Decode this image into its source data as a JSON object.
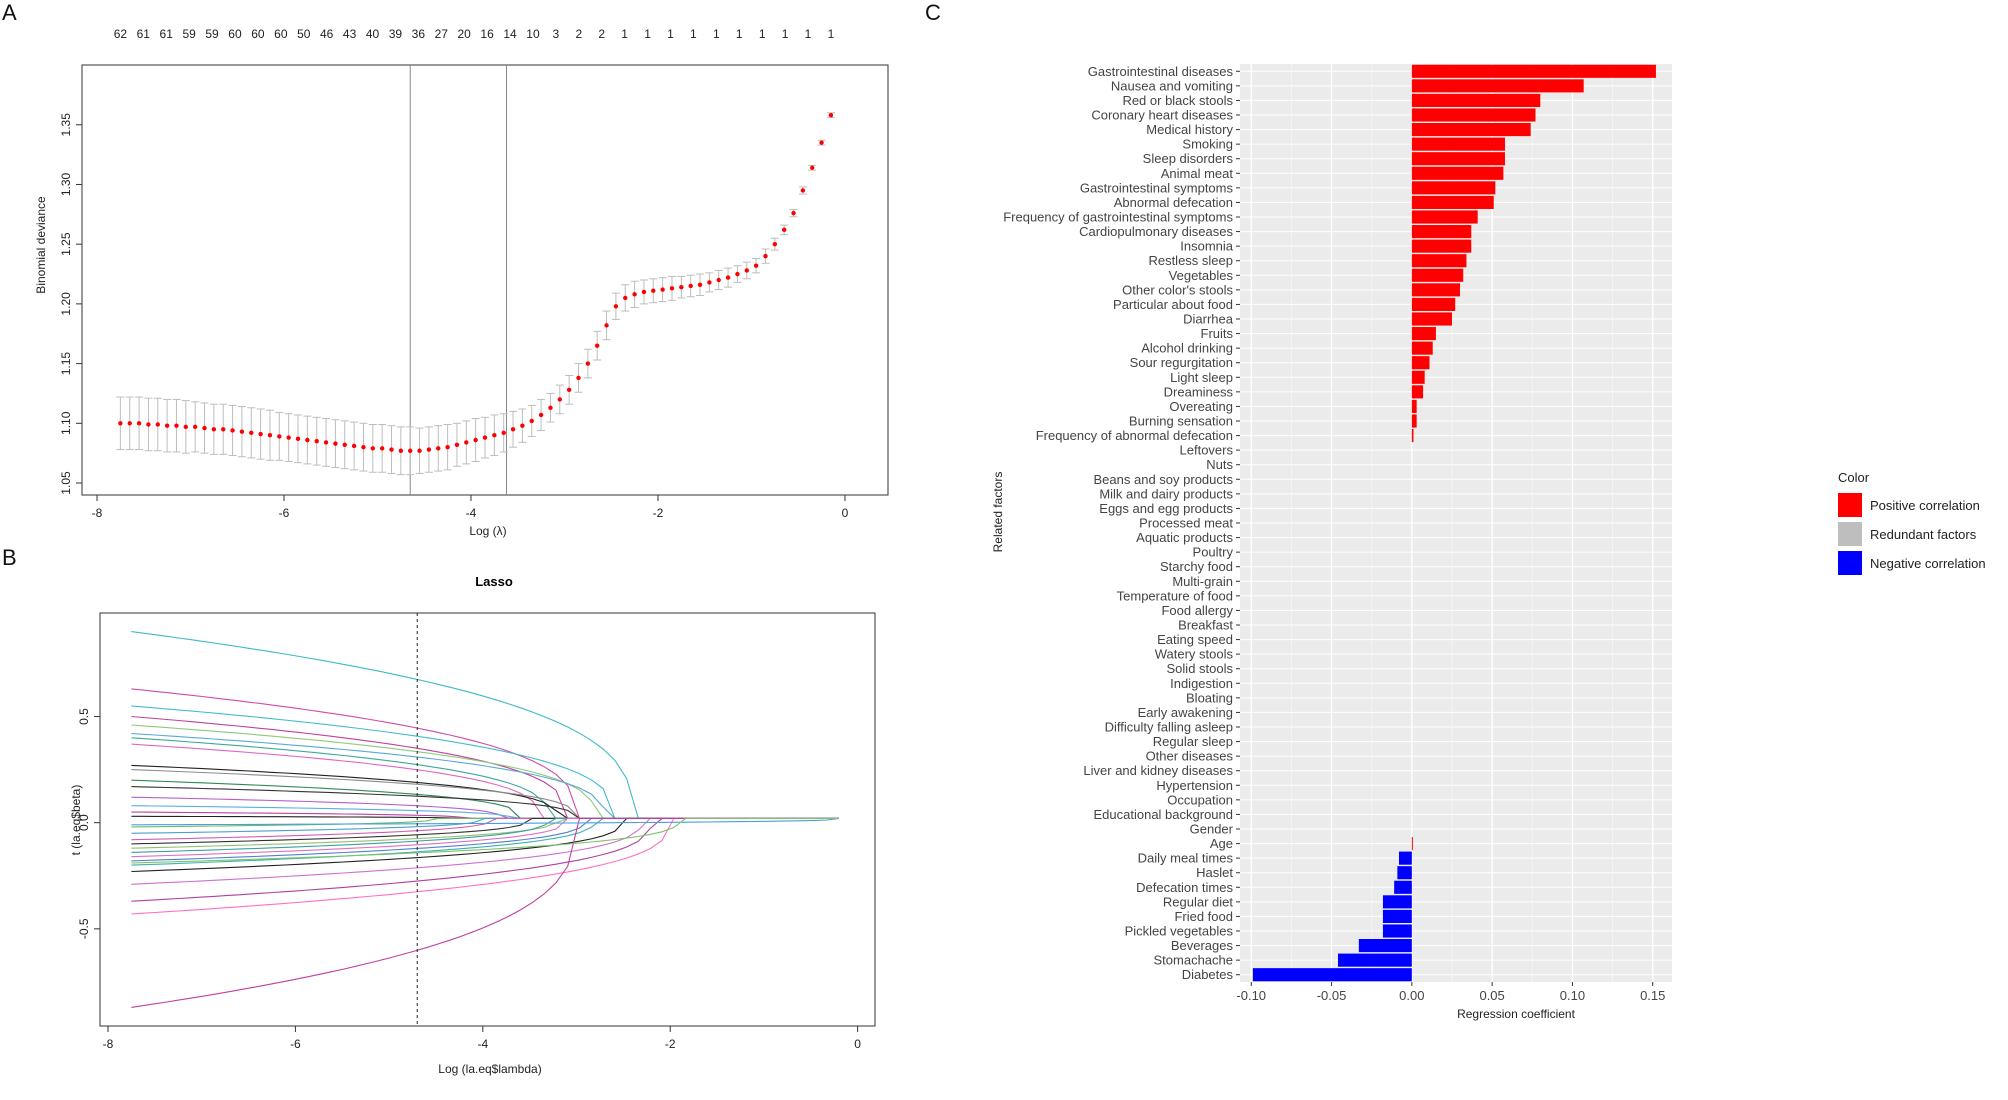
{
  "panels": {
    "a_letter": "A",
    "b_letter": "B",
    "c_letter": "C"
  },
  "colors": {
    "positive": "#ff0000",
    "redundant": "#bebebe",
    "negative": "#0000ff",
    "panel_bg": "#ebebeb",
    "cv_point": "#ff0000",
    "cv_bar": "#bdbdbd"
  },
  "chart_data": [
    {
      "type": "scatter",
      "panel": "A",
      "title": "",
      "xlabel": "Log (λ)",
      "ylabel": "Binomial deviance",
      "xlim": [
        -8,
        0.3
      ],
      "ylim": [
        1.05,
        1.39
      ],
      "x_ticks": [
        "-8",
        "-6",
        "-4",
        "-2",
        "0"
      ],
      "y_ticks": [
        "1.05",
        "1.10",
        "1.15",
        "1.20",
        "1.25",
        "1.30",
        "1.35"
      ],
      "top_axis_labels": [
        "62",
        "61",
        "61",
        "59",
        "59",
        "60",
        "60",
        "60",
        "50",
        "46",
        "43",
        "40",
        "39",
        "36",
        "27",
        "20",
        "16",
        "14",
        "10",
        "3",
        "2",
        "2",
        "1",
        "1",
        "1",
        "1",
        "1",
        "1",
        "1",
        "1",
        "1",
        "1"
      ],
      "vlines": [
        -4.65,
        -3.62
      ],
      "series": [
        {
          "x": [
            -7.75,
            -7.65,
            -7.55,
            -7.45,
            -7.35,
            -7.25,
            -7.15,
            -7.05,
            -6.95,
            -6.85,
            -6.75,
            -6.65,
            -6.55,
            -6.45,
            -6.35,
            -6.25,
            -6.15,
            -6.05,
            -5.95,
            -5.85,
            -5.75,
            -5.65,
            -5.55,
            -5.45,
            -5.35,
            -5.25,
            -5.15,
            -5.05,
            -4.95,
            -4.85,
            -4.75,
            -4.65,
            -4.55,
            -4.45,
            -4.35,
            -4.25,
            -4.15,
            -4.05,
            -3.95,
            -3.85,
            -3.75,
            -3.65,
            -3.55,
            -3.45,
            -3.35,
            -3.25,
            -3.15,
            -3.05,
            -2.95,
            -2.85,
            -2.75,
            -2.65,
            -2.55,
            -2.45,
            -2.35,
            -2.25,
            -2.15,
            -2.05,
            -1.95,
            -1.85,
            -1.75,
            -1.65,
            -1.55,
            -1.45,
            -1.35,
            -1.25,
            -1.15,
            -1.05,
            -0.95,
            -0.85,
            -0.75,
            -0.65,
            -0.55,
            -0.45,
            -0.35,
            -0.25,
            -0.15
          ],
          "y": [
            1.1,
            1.1,
            1.1,
            1.099,
            1.099,
            1.098,
            1.098,
            1.097,
            1.097,
            1.096,
            1.095,
            1.095,
            1.094,
            1.093,
            1.092,
            1.091,
            1.09,
            1.089,
            1.088,
            1.087,
            1.086,
            1.085,
            1.084,
            1.083,
            1.082,
            1.081,
            1.08,
            1.079,
            1.079,
            1.078,
            1.077,
            1.077,
            1.077,
            1.078,
            1.079,
            1.08,
            1.082,
            1.084,
            1.086,
            1.088,
            1.09,
            1.092,
            1.095,
            1.098,
            1.102,
            1.107,
            1.113,
            1.12,
            1.128,
            1.138,
            1.15,
            1.165,
            1.182,
            1.198,
            1.205,
            1.208,
            1.21,
            1.211,
            1.212,
            1.213,
            1.214,
            1.215,
            1.216,
            1.218,
            1.22,
            1.222,
            1.225,
            1.228,
            1.232,
            1.24,
            1.25,
            1.262,
            1.276,
            1.295,
            1.314,
            1.335,
            1.358
          ],
          "se": [
            0.022,
            0.022,
            0.022,
            0.022,
            0.022,
            0.022,
            0.022,
            0.022,
            0.021,
            0.021,
            0.021,
            0.021,
            0.021,
            0.021,
            0.021,
            0.021,
            0.021,
            0.02,
            0.02,
            0.02,
            0.02,
            0.02,
            0.02,
            0.02,
            0.02,
            0.02,
            0.02,
            0.02,
            0.02,
            0.02,
            0.02,
            0.02,
            0.019,
            0.019,
            0.019,
            0.019,
            0.018,
            0.018,
            0.018,
            0.017,
            0.017,
            0.016,
            0.015,
            0.014,
            0.013,
            0.013,
            0.012,
            0.012,
            0.012,
            0.012,
            0.012,
            0.012,
            0.012,
            0.011,
            0.011,
            0.011,
            0.01,
            0.01,
            0.01,
            0.01,
            0.009,
            0.009,
            0.009,
            0.008,
            0.008,
            0.008,
            0.007,
            0.007,
            0.006,
            0.006,
            0.005,
            0.004,
            0.003,
            0.003,
            0.002,
            0.002,
            0.002
          ]
        }
      ]
    },
    {
      "type": "line",
      "panel": "B",
      "title": "Lasso",
      "xlabel": "Log (la.eq$lambda)",
      "ylabel": "t (la.eq$beta)",
      "xlim": [
        -8,
        0.1
      ],
      "ylim": [
        -0.92,
        0.95
      ],
      "x_ticks": [
        "-8",
        "-6",
        "-4",
        "-2",
        "0"
      ],
      "y_ticks": [
        "-0.5",
        "0.0",
        "0.5"
      ],
      "vline": -4.7,
      "lambda_range": [
        -7.75,
        -0.2
      ],
      "series": [
        {
          "color": "#3fb9c9",
          "start": 0.9,
          "zero_at": -2.4
        },
        {
          "color": "#d14aa8",
          "start": 0.63,
          "zero_at": -3.0
        },
        {
          "color": "#44bcd0",
          "start": 0.55,
          "zero_at": -2.6
        },
        {
          "color": "#c0419c",
          "start": 0.5,
          "zero_at": -3.1
        },
        {
          "color": "#8fc87a",
          "start": 0.46,
          "zero_at": -2.8
        },
        {
          "color": "#5aa9d8",
          "start": 0.42,
          "zero_at": -2.7
        },
        {
          "color": "#3ea89a",
          "start": 0.4,
          "zero_at": -3.3
        },
        {
          "color": "#e066c2",
          "start": 0.37,
          "zero_at": -3.4
        },
        {
          "color": "#222222",
          "start": 0.27,
          "zero_at": -3.2
        },
        {
          "color": "#8b8b8b",
          "start": 0.25,
          "zero_at": -3.0
        },
        {
          "color": "#2e8b57",
          "start": 0.2,
          "zero_at": -3.6
        },
        {
          "color": "#333333",
          "start": 0.17,
          "zero_at": -3.0
        },
        {
          "color": "#b65fcf",
          "start": 0.12,
          "zero_at": -3.8
        },
        {
          "color": "#5ab0e0",
          "start": 0.08,
          "zero_at": -3.7
        },
        {
          "color": "#c040a0",
          "start": 0.05,
          "zero_at": -4.2
        },
        {
          "color": "#222222",
          "start": 0.03,
          "zero_at": -4.3
        },
        {
          "color": "#6fbf5f",
          "start": -0.02,
          "zero_at": -4.5
        },
        {
          "color": "#4aa0d0",
          "start": -0.05,
          "zero_at": -4.0
        },
        {
          "color": "#d060b0",
          "start": -0.08,
          "zero_at": -3.9
        },
        {
          "color": "#333333",
          "start": -0.1,
          "zero_at": -3.5
        },
        {
          "color": "#90c070",
          "start": -0.12,
          "zero_at": -3.2
        },
        {
          "color": "#3ca0a0",
          "start": -0.14,
          "zero_at": -3.3
        },
        {
          "color": "#e070c0",
          "start": -0.16,
          "zero_at": -3.1
        },
        {
          "color": "#5080d0",
          "start": -0.18,
          "zero_at": -2.9
        },
        {
          "color": "#40b0b0",
          "start": -0.2,
          "zero_at": -2.8
        },
        {
          "color": "#222222",
          "start": -0.23,
          "zero_at": -2.5
        },
        {
          "color": "#d070d0",
          "start": -0.29,
          "zero_at": -2.3
        },
        {
          "color": "#b040a0",
          "start": -0.37,
          "zero_at": -2.2
        },
        {
          "color": "#ff70c0",
          "start": -0.43,
          "zero_at": -2.0
        },
        {
          "color": "#c040a0",
          "start": -0.87,
          "zero_at": -3.0
        },
        {
          "color": "#4a9ee0",
          "start": -0.01,
          "zero_at": -0.2
        },
        {
          "color": "#7cc36a",
          "start": -0.19,
          "zero_at": -1.9
        }
      ]
    },
    {
      "type": "bar",
      "panel": "C",
      "orientation": "horizontal",
      "title": "",
      "xlabel": "Regression coefficient",
      "ylabel": "Related factors",
      "xlim": [
        -0.107,
        0.162
      ],
      "x_ticks": [
        -0.1,
        -0.05,
        0.0,
        0.05,
        0.1,
        0.15
      ],
      "x_tick_labels": [
        "-0.10",
        "-0.05",
        "0.00",
        "0.05",
        "0.10",
        "0.15"
      ],
      "legend_title": "Color",
      "legend_placement": "right",
      "legend": [
        {
          "label": "Positive correlation",
          "color": "#ff0000"
        },
        {
          "label": "Redundant factors",
          "color": "#bebebe"
        },
        {
          "label": "Negative correlation",
          "color": "#0000ff"
        }
      ],
      "categories": [
        "Gastrointestinal diseases",
        "Nausea and vomiting",
        "Red or black stools",
        "Coronary heart diseases",
        "Medical history",
        "Smoking",
        "Sleep disorders",
        "Animal meat",
        "Gastrointestinal symptoms",
        "Abnormal defecation",
        "Frequency of gastrointestinal symptoms",
        "Cardiopulmonary diseases",
        "Insomnia",
        "Restless sleep",
        "Vegetables",
        "Other color's stools",
        "Particular about food",
        "Diarrhea",
        "Fruits",
        "Alcohol drinking",
        "Sour regurgitation",
        "Light sleep",
        "Dreaminess",
        "Overeating",
        "Burning sensation",
        "Frequency of abnormal defecation",
        "Leftovers",
        "Nuts",
        "Beans and soy products",
        "Milk and dairy products",
        "Eggs and egg products",
        "Processed meat",
        "Aquatic products",
        "Poultry",
        "Starchy food",
        "Multi-grain",
        "Temperature of food",
        "Food allergy",
        "Breakfast",
        "Eating speed",
        "Watery stools",
        "Solid stools",
        "Indigestion",
        "Bloating",
        "Early awakening",
        "Difficulty falling asleep",
        "Regular sleep",
        "Other diseases",
        "Liver and kidney diseases",
        "Hypertension",
        "Occupation",
        "Educational background",
        "Gender",
        "Age",
        "Daily meal times",
        "Haslet",
        "Defecation times",
        "Regular diet",
        "Fried food",
        "Pickled vegetables",
        "Beverages",
        "Stomachache",
        "Diabetes"
      ],
      "values": [
        0.152,
        0.107,
        0.08,
        0.077,
        0.074,
        0.058,
        0.058,
        0.057,
        0.052,
        0.051,
        0.041,
        0.037,
        0.037,
        0.034,
        0.032,
        0.03,
        0.027,
        0.025,
        0.015,
        0.013,
        0.011,
        0.008,
        0.007,
        0.003,
        0.003,
        0.001,
        0,
        0,
        0,
        0,
        0,
        0,
        0,
        0,
        0,
        0,
        0,
        0,
        0,
        0,
        0,
        0,
        0,
        0,
        0,
        0,
        0,
        0,
        0,
        0,
        0,
        0,
        0,
        0.0005,
        -0.008,
        -0.009,
        -0.011,
        -0.018,
        -0.018,
        -0.018,
        -0.033,
        -0.046,
        -0.099
      ]
    }
  ]
}
